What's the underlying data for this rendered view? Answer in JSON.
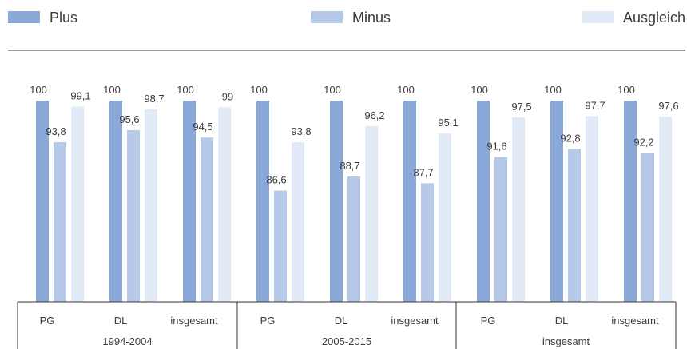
{
  "chart_data": {
    "type": "bar",
    "legend_position": "top",
    "legend": [
      {
        "name": "Plus",
        "color": "#8aa9d8"
      },
      {
        "name": "Minus",
        "color": "#b7c9e9"
      },
      {
        "name": "Ausgleich",
        "color": "#e3eaf7"
      }
    ],
    "groups": [
      {
        "label": "1994-2004",
        "categories": [
          "PG",
          "DL",
          "insgesamt"
        ]
      },
      {
        "label": "2005-2015",
        "categories": [
          "PG",
          "DL",
          "insgesamt"
        ]
      },
      {
        "label": "insgesamt",
        "categories": [
          "PG",
          "DL",
          "insgesamt"
        ]
      }
    ],
    "series": [
      {
        "name": "Plus",
        "color": "#8aa9d8",
        "values": [
          100,
          100,
          100,
          100,
          100,
          100,
          100,
          100,
          100
        ],
        "labels": [
          "100",
          "100",
          "100",
          "100",
          "100",
          "100",
          "100",
          "100",
          "100"
        ]
      },
      {
        "name": "Minus",
        "color": "#b7c9e9",
        "values": [
          93.8,
          95.6,
          94.5,
          86.6,
          88.7,
          87.7,
          91.6,
          92.8,
          92.2
        ],
        "labels": [
          "93,8",
          "95,6",
          "94,5",
          "86,6",
          "88,7",
          "87,7",
          "91,6",
          "92,8",
          "92,2"
        ]
      },
      {
        "name": "Ausgleich",
        "color": "#e3eaf7",
        "values": [
          99.1,
          98.7,
          99,
          93.8,
          96.2,
          95.1,
          97.5,
          97.7,
          97.6
        ],
        "labels": [
          "99,1",
          "98,7",
          "99",
          "93,8",
          "96,2",
          "95,1",
          "97,5",
          "97,7",
          "97,6"
        ]
      }
    ],
    "ylim": [
      70,
      100
    ],
    "grid": false
  }
}
